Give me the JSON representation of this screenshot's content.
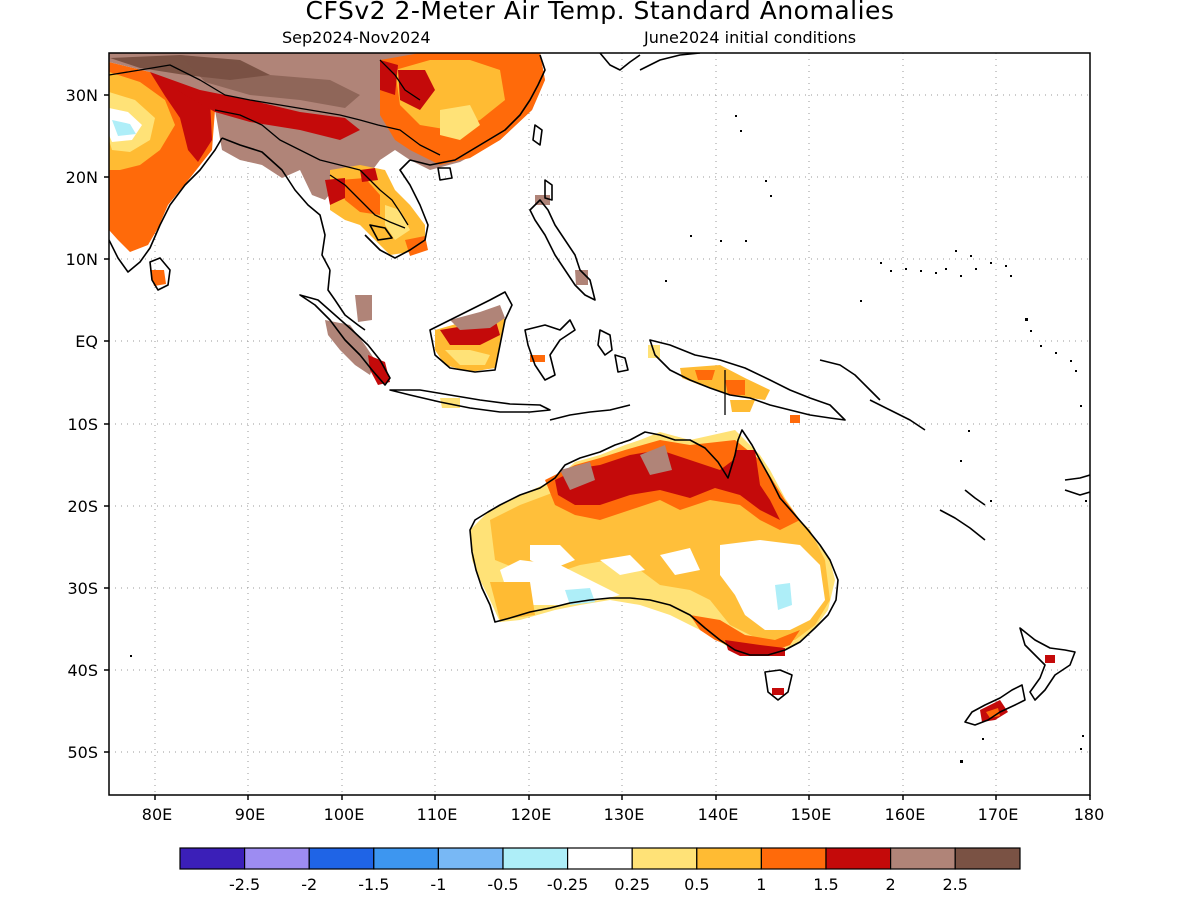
{
  "title": "CFSv2 2-Meter Air Temp. Standard Anomalies",
  "subtitle_left": "Sep2024-Nov2024",
  "subtitle_right": "June2024 initial conditions",
  "lat_labels": [
    "30N",
    "20N",
    "10N",
    "EQ",
    "10S",
    "20S",
    "30S",
    "40S",
    "50S"
  ],
  "lon_labels": [
    "80E",
    "90E",
    "100E",
    "110E",
    "120E",
    "130E",
    "140E",
    "150E",
    "160E",
    "170E",
    "180"
  ],
  "map_extent": {
    "lon_min": 75,
    "lon_max": 180,
    "lat_min": -55,
    "lat_max": 35
  },
  "legend": {
    "bins": [
      {
        "color": "#3b1fb8"
      },
      {
        "color": "#9d8cf2"
      },
      {
        "color": "#1f64e6"
      },
      {
        "color": "#3d96f0"
      },
      {
        "color": "#78b8f5"
      },
      {
        "color": "#aeeef8"
      },
      {
        "color": "#ffffff"
      },
      {
        "color": "#ffe277"
      },
      {
        "color": "#ffbb33"
      },
      {
        "color": "#ff6a0a"
      },
      {
        "color": "#c40a0a"
      },
      {
        "color": "#b08478"
      },
      {
        "color": "#7a5244"
      }
    ],
    "labels": [
      "-2.5",
      "-2",
      "-1.5",
      "-1",
      "-0.5",
      "-0.25",
      "0.25",
      "0.5",
      "1",
      "1.5",
      "2",
      "2.5"
    ]
  }
}
